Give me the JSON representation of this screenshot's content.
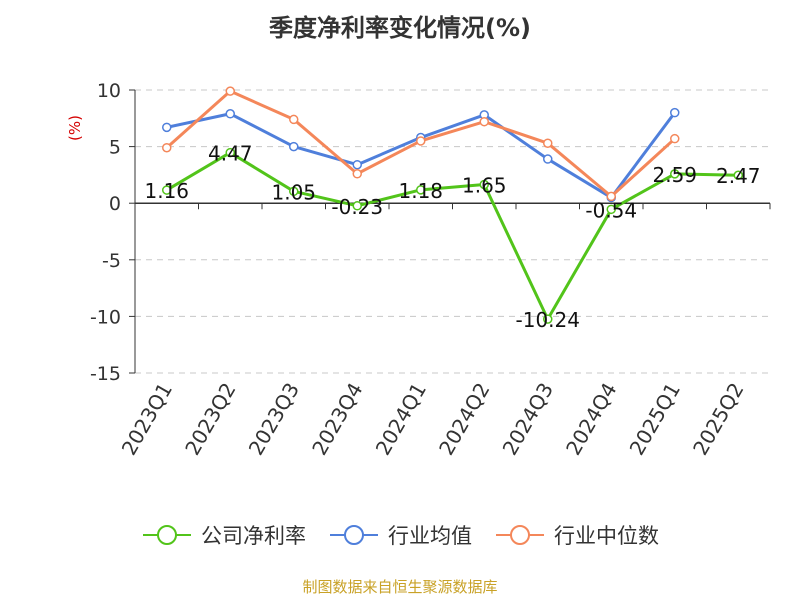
{
  "chart_data": {
    "type": "line",
    "title": "季度净利率变化情况(%)",
    "ylabel": "(%)",
    "xlabel": "",
    "categories": [
      "2023Q1",
      "2023Q2",
      "2023Q3",
      "2023Q4",
      "2024Q1",
      "2024Q2",
      "2024Q3",
      "2024Q4",
      "2025Q1",
      "2025Q2"
    ],
    "ylim": [
      -15,
      10
    ],
    "yticks": [
      "10",
      "5",
      "0",
      "-5",
      "-10",
      "-15"
    ],
    "grid": true,
    "legend_position": "bottom",
    "series": [
      {
        "name": "公司净利率",
        "color": "#52c41a",
        "values": [
          1.16,
          4.47,
          1.05,
          -0.23,
          1.18,
          1.65,
          -10.24,
          -0.54,
          2.59,
          2.47
        ],
        "labels": [
          "1.16",
          "4.47",
          "1.05",
          "-0.23",
          "1.18",
          "1.65",
          "-10.24",
          "-0.54",
          "2.59",
          "2.47"
        ]
      },
      {
        "name": "行业均值",
        "color": "#4f7fdb",
        "values": [
          6.7,
          7.9,
          5.0,
          3.4,
          5.8,
          7.8,
          3.9,
          0.5,
          8.0,
          null
        ]
      },
      {
        "name": "行业中位数",
        "color": "#f4875a",
        "values": [
          4.9,
          9.9,
          7.4,
          2.6,
          5.5,
          7.2,
          5.3,
          0.6,
          5.7,
          null
        ]
      }
    ]
  },
  "footer": {
    "source": "制图数据来自恒生聚源数据库"
  }
}
